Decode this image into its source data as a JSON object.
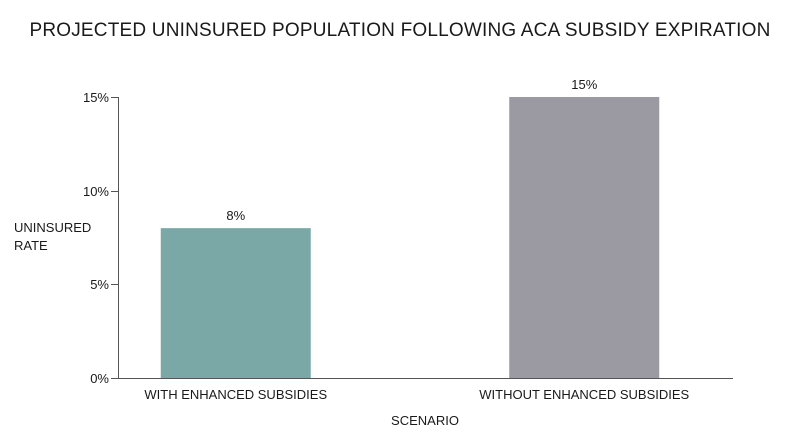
{
  "chart_data": {
    "type": "bar",
    "title": "PROJECTED UNINSURED POPULATION FOLLOWING ACA SUBSIDY EXPIRATION",
    "xlabel": "SCENARIO",
    "ylabel_lines": [
      "UNINSURED",
      "RATE"
    ],
    "categories": [
      "WITH ENHANCED SUBSIDIES",
      "WITHOUT ENHANCED SUBSIDIES"
    ],
    "values": [
      8,
      15
    ],
    "value_labels": [
      "8%",
      "15%"
    ],
    "bar_colors": [
      "#7aa8a6",
      "#9b99a2"
    ],
    "ylim": [
      0,
      15
    ],
    "yticks": [
      0,
      5,
      10,
      15
    ],
    "ytick_labels": [
      "0%",
      "5%",
      "10%",
      "15%"
    ],
    "grid": false,
    "legend": "none"
  }
}
